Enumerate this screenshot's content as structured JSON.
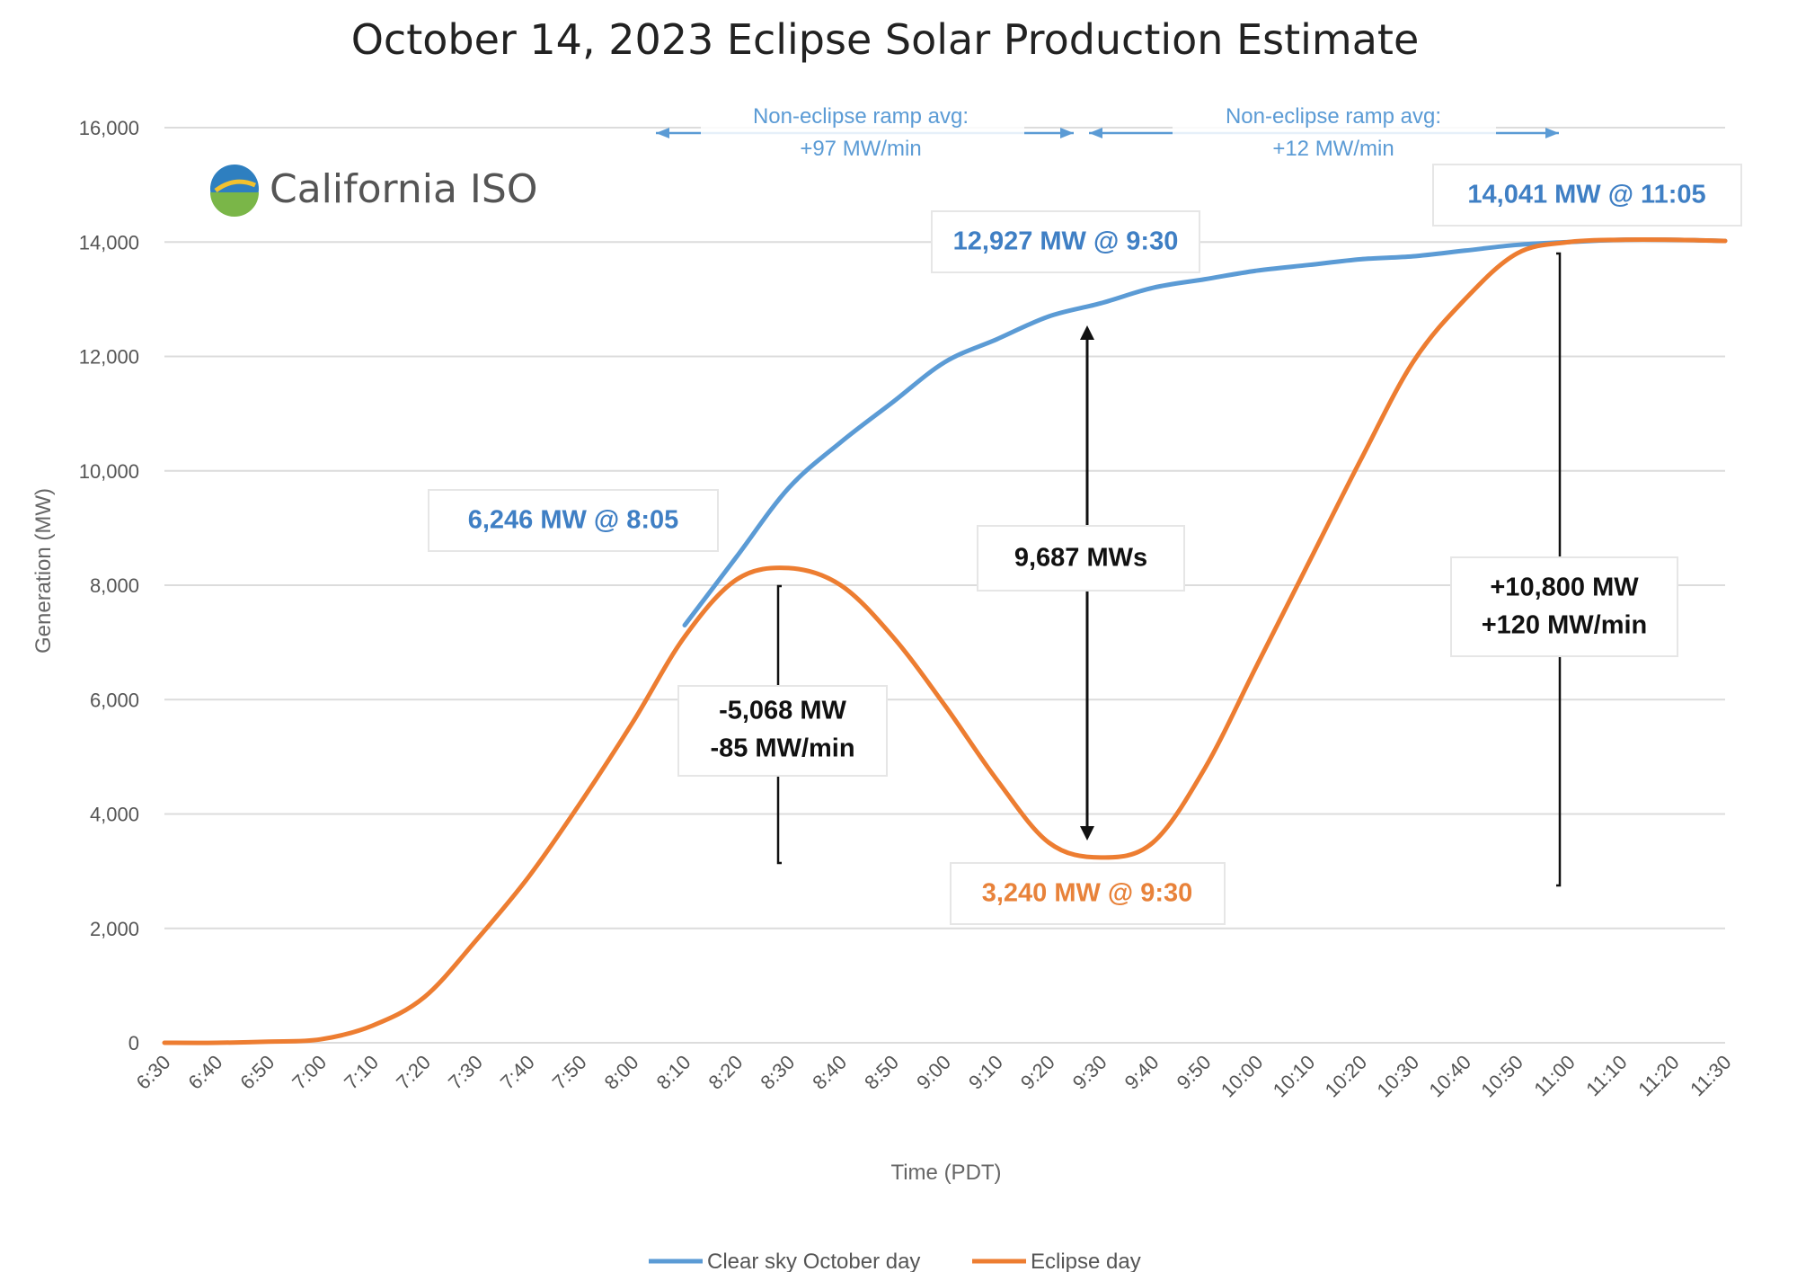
{
  "chart_data": {
    "type": "line",
    "title": "October 14, 2023 Eclipse Solar Production Estimate",
    "xlabel": "Time (PDT)",
    "ylabel": "Generation (MW)",
    "ylim": [
      0,
      16000
    ],
    "yticks": [
      0,
      2000,
      4000,
      6000,
      8000,
      10000,
      12000,
      14000,
      16000
    ],
    "ytick_labels": [
      "0",
      "2,000",
      "4,000",
      "6,000",
      "8,000",
      "10,000",
      "12,000",
      "14,000",
      "16,000"
    ],
    "categories": [
      "6:30",
      "6:40",
      "6:50",
      "7:00",
      "7:10",
      "7:20",
      "7:30",
      "7:40",
      "7:50",
      "8:00",
      "8:10",
      "8:20",
      "8:30",
      "8:40",
      "8:50",
      "9:00",
      "9:10",
      "9:20",
      "9:30",
      "9:40",
      "9:50",
      "10:00",
      "10:10",
      "10:20",
      "10:30",
      "10:40",
      "10:50",
      "11:00",
      "11:10",
      "11:20",
      "11:30"
    ],
    "grid": true,
    "legend_position": "bottom",
    "series": [
      {
        "name": "Clear sky October day",
        "color": "#5b9bd5",
        "x": [
          "8:10",
          "8:20",
          "8:30",
          "8:40",
          "8:50",
          "9:00",
          "9:10",
          "9:20",
          "9:30",
          "9:40",
          "9:50",
          "10:00",
          "10:10",
          "10:20",
          "10:30",
          "10:40",
          "10:50",
          "11:00",
          "11:10",
          "11:20",
          "11:30"
        ],
        "values": [
          7300,
          8500,
          9700,
          10500,
          11200,
          11900,
          12300,
          12700,
          12930,
          13200,
          13350,
          13500,
          13600,
          13700,
          13750,
          13850,
          13950,
          14000,
          14040,
          14040,
          14020
        ]
      },
      {
        "name": "Eclipse day",
        "color": "#ed7d31",
        "x": [
          "6:30",
          "6:40",
          "6:50",
          "7:00",
          "7:10",
          "7:20",
          "7:30",
          "7:40",
          "7:50",
          "8:00",
          "8:10",
          "8:20",
          "8:30",
          "8:40",
          "8:50",
          "9:00",
          "9:10",
          "9:20",
          "9:30",
          "9:40",
          "9:50",
          "10:00",
          "10:10",
          "10:20",
          "10:30",
          "10:40",
          "10:50",
          "11:00",
          "11:10",
          "11:20",
          "11:30"
        ],
        "values": [
          0,
          0,
          20,
          60,
          300,
          800,
          1800,
          2900,
          4200,
          5600,
          7100,
          8100,
          8300,
          8000,
          7100,
          5900,
          4600,
          3500,
          3240,
          3500,
          4800,
          6600,
          8400,
          10200,
          11900,
          13000,
          13800,
          14000,
          14040,
          14040,
          14020
        ]
      }
    ],
    "annotations": {
      "clear_830": "6,246 MW @ 8:05",
      "clear_930": "12,927 MW @ 9:30",
      "clear_1105": "14,041 MW @ 11:05",
      "eclipse_930": "3,240 MW @ 9:30",
      "gap": "9,687 MWs",
      "drop_line1": "-5,068 MW",
      "drop_line2": "-85 MW/min",
      "rise_line1": "+10,800 MW",
      "rise_line2": "+120 MW/min",
      "ramp1_line1": "Non-eclipse ramp avg:",
      "ramp1_line2": "+97 MW/min",
      "ramp2_line1": "Non-eclipse ramp avg:",
      "ramp2_line2": "+12 MW/min"
    }
  },
  "logo": {
    "text": "California ISO",
    "icon": "california-iso-logo-icon",
    "colors": {
      "top": "#2e7fc0",
      "bottom": "#7ab648",
      "sun": "#f2c12e"
    }
  }
}
